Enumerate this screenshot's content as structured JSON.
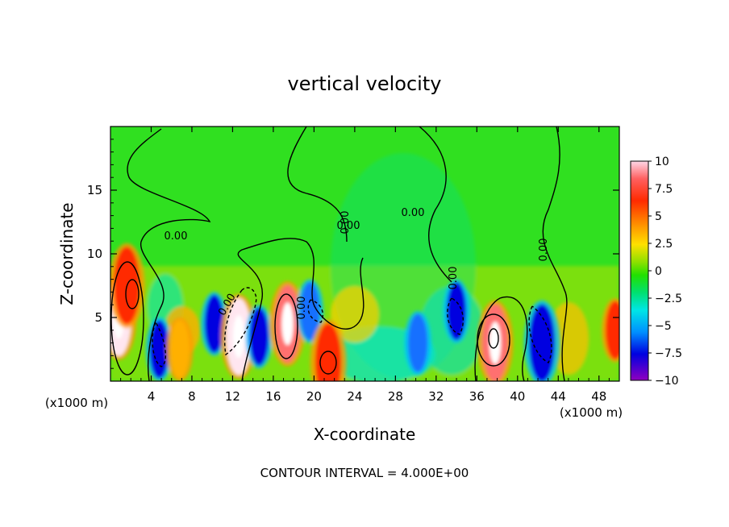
{
  "chart_data": {
    "type": "heatmap",
    "title": "vertical velocity",
    "xlabel": "X-coordinate",
    "ylabel": "Z-coordinate",
    "x_units": "(x1000 m)",
    "y_units": "(x1000 m)",
    "xlim": [
      0,
      50
    ],
    "ylim": [
      0,
      20
    ],
    "x_ticks": [
      4,
      8,
      12,
      16,
      20,
      24,
      28,
      32,
      36,
      40,
      44,
      48
    ],
    "y_ticks": [
      5,
      10,
      15
    ],
    "colorbar": {
      "ticks": [
        "10",
        "7.5",
        "5",
        "2.5",
        "0",
        "−2.5",
        "−5",
        "−7.5",
        "−10"
      ],
      "range": [
        -10,
        10
      ]
    },
    "contour_labels": [
      "0.00",
      "0.00",
      "0.00",
      "0.00",
      "0.00",
      "0.00",
      "0.00",
      "0.00"
    ],
    "footer": "CONTOUR INTERVAL = 4.000E+00",
    "cells": [
      {
        "x": 0.8,
        "z": 5.0,
        "v": 10
      },
      {
        "x": 1.6,
        "z": 7.5,
        "v": 8
      },
      {
        "x": 4.8,
        "z": 2.5,
        "v": -7.5
      },
      {
        "x": 6.8,
        "z": 2.5,
        "v": 4
      },
      {
        "x": 10.2,
        "z": 4.5,
        "v": -7.5
      },
      {
        "x": 12.6,
        "z": 3.5,
        "v": 10
      },
      {
        "x": 14.6,
        "z": 3.5,
        "v": -7.5
      },
      {
        "x": 17.4,
        "z": 4.5,
        "v": 9
      },
      {
        "x": 19.6,
        "z": 5.5,
        "v": -6
      },
      {
        "x": 21.4,
        "z": 1.5,
        "v": 8
      },
      {
        "x": 30.2,
        "z": 3.0,
        "v": -5
      },
      {
        "x": 34.0,
        "z": 5.5,
        "v": -7
      },
      {
        "x": 37.8,
        "z": 3.0,
        "v": 9
      },
      {
        "x": 42.4,
        "z": 3.0,
        "v": -8
      },
      {
        "x": 49.6,
        "z": 4.0,
        "v": 7
      }
    ]
  }
}
